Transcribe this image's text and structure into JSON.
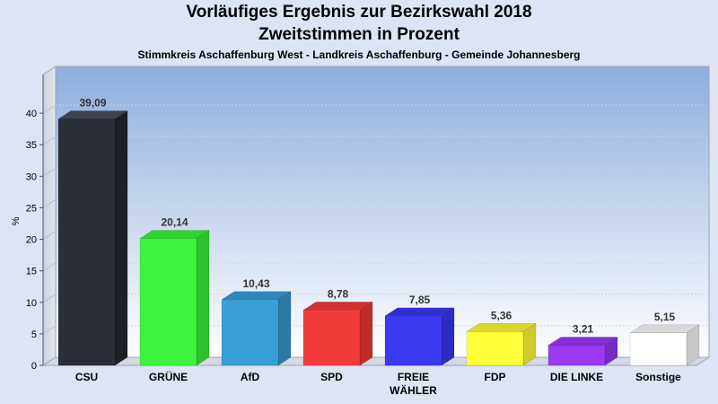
{
  "header": {
    "title_line1": "Vorläufiges Ergebnis zur Bezirkswahl 2018",
    "title_line2": "Zweitstimmen in Prozent",
    "subtitle": "Stimmkreis Aschaffenburg West - Landkreis Aschaffenburg - Gemeinde Johannesberg"
  },
  "chart_data": {
    "type": "bar",
    "title": "Vorläufiges Ergebnis zur Bezirkswahl 2018 Zweitstimmen in Prozent",
    "subtitle": "Stimmkreis Aschaffenburg West - Landkreis Aschaffenburg - Gemeinde Johannesberg",
    "ylabel": "%",
    "xlabel": "",
    "ylim": [
      0,
      45
    ],
    "yticks": [
      0,
      5,
      10,
      15,
      20,
      25,
      30,
      35,
      40
    ],
    "grid": true,
    "categories": [
      "CSU",
      "GRÜNE",
      "AfD",
      "SPD",
      "FREIE WÄHLER",
      "FDP",
      "DIE LINKE",
      "Sonstige"
    ],
    "category_lines": [
      [
        "CSU"
      ],
      [
        "GRÜNE"
      ],
      [
        "AfD"
      ],
      [
        "SPD"
      ],
      [
        "FREIE",
        "WÄHLER"
      ],
      [
        "FDP"
      ],
      [
        "DIE LINKE"
      ],
      [
        "Sonstige"
      ]
    ],
    "values": [
      39.09,
      20.14,
      10.43,
      8.78,
      7.85,
      5.36,
      3.21,
      5.15
    ],
    "value_labels": [
      "39,09",
      "20,14",
      "10,43",
      "8,78",
      "7,85",
      "5,36",
      "3,21",
      "5,15"
    ],
    "colors": [
      "#2b2f38",
      "#3cf23c",
      "#3a9ed6",
      "#f23a3a",
      "#3a3af2",
      "#ffff3a",
      "#9a3af2",
      "#ffffff"
    ],
    "side_colors": [
      "#1c1f26",
      "#2cc12c",
      "#2c7aa8",
      "#c02c2c",
      "#2c2cc0",
      "#cccc2c",
      "#762cc0",
      "#c8c8c8"
    ],
    "top_colors": [
      "#3d424e",
      "#2ed42e",
      "#2f86b8",
      "#d23030",
      "#3030d2",
      "#d8d82e",
      "#8430d2",
      "#d8d8d8"
    ]
  }
}
